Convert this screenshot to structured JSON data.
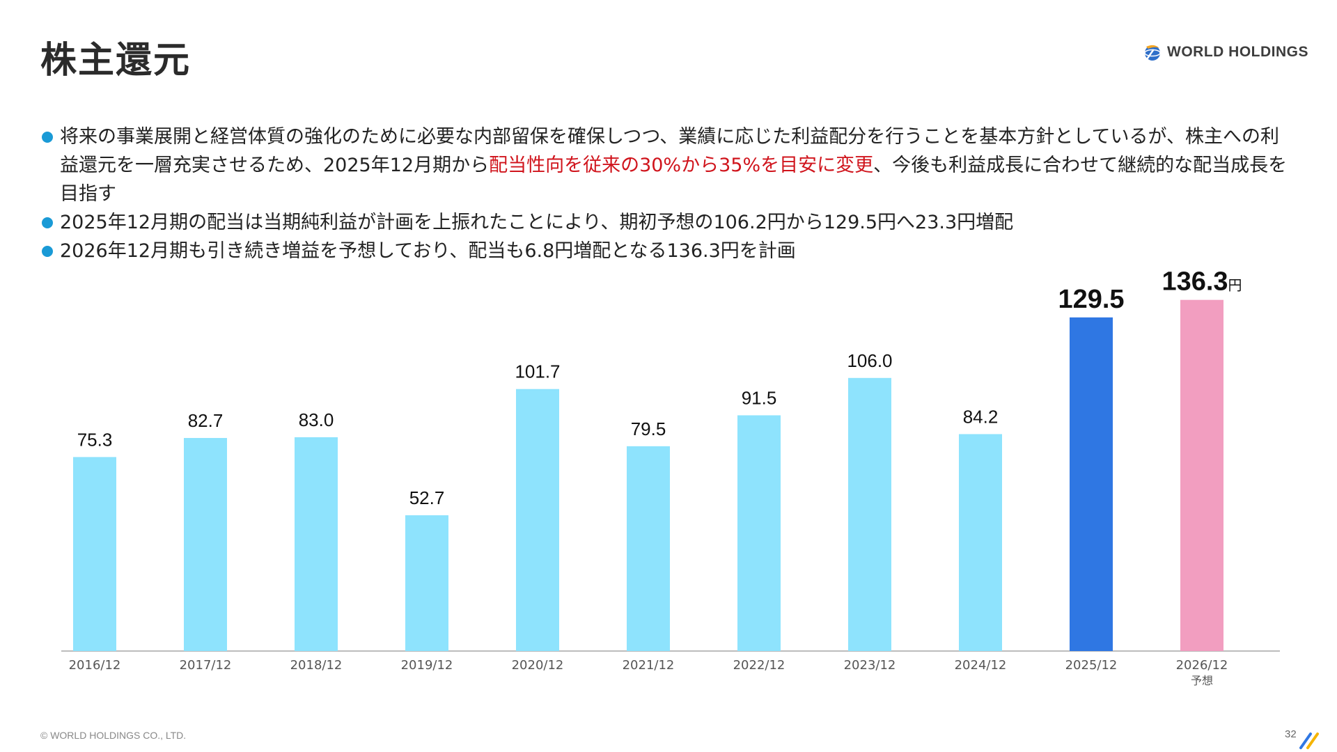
{
  "page": {
    "title": "株主還元",
    "logo_text": "WORLD HOLDINGS",
    "footer": "© WORLD HOLDINGS CO., LTD.",
    "page_number": "32"
  },
  "bullets": [
    {
      "before": "将来の事業展開と経営体質の強化のために必要な内部留保を確保しつつ、業績に応じた利益配分を行うことを基本方針としているが、株主への利益還元を一層充実させるため、2025年12月期から",
      "highlight": "配当性向を従来の30%から35%を目安に変更",
      "after": "、今後も利益成長に合わせて継続的な配当成長を目指す"
    },
    {
      "before": "2025年12月期の配当は当期純利益が計画を上振れたことにより、期初予想の106.2円から129.5円へ23.3円増配",
      "highlight": "",
      "after": ""
    },
    {
      "before": "2026年12月期も引き続き増益を予想しており、配当も6.8円増配となる136.3円を計画",
      "highlight": "",
      "after": ""
    }
  ],
  "colors": {
    "bar_default": "#8ee3fd",
    "bar_current": "#2f77e3",
    "bar_forecast": "#f29ec0",
    "highlight_text": "#d0141c",
    "bullet_dot": "#1a9ad6"
  },
  "chart_data": {
    "type": "bar",
    "title": "",
    "xlabel": "",
    "ylabel": "",
    "ylim": [
      0,
      140
    ],
    "grid": false,
    "categories": [
      "2016/12",
      "2017/12",
      "2018/12",
      "2019/12",
      "2020/12",
      "2021/12",
      "2022/12",
      "2023/12",
      "2024/12",
      "2025/12",
      "2026/12"
    ],
    "category_sublabels": [
      "",
      "",
      "",
      "",
      "",
      "",
      "",
      "",
      "",
      "",
      "予想"
    ],
    "values": [
      75.3,
      82.7,
      83.0,
      52.7,
      101.7,
      79.5,
      91.5,
      106.0,
      84.2,
      129.5,
      136.3
    ],
    "value_labels": [
      "75.3",
      "82.7",
      "83.0",
      "52.7",
      "101.7",
      "79.5",
      "91.5",
      "106.0",
      "84.2",
      "129.5",
      "136.3"
    ],
    "value_units": [
      "",
      "",
      "",
      "",
      "",
      "",
      "",
      "",
      "",
      "",
      "円"
    ],
    "bar_styles": [
      "default",
      "default",
      "default",
      "default",
      "default",
      "default",
      "default",
      "default",
      "default",
      "current",
      "forecast"
    ]
  }
}
